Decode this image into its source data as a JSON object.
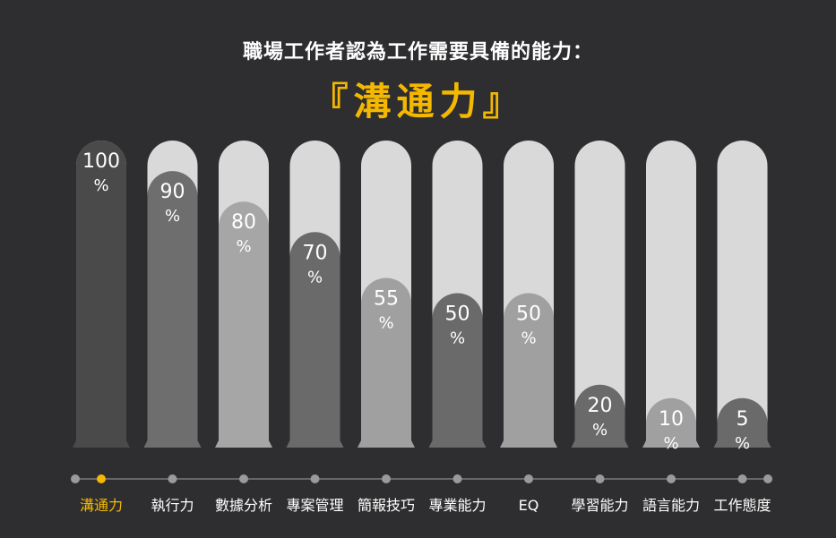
{
  "header": {
    "title": "職場工作者認為工作需要具備的能力：",
    "highlight": "『溝通力』"
  },
  "colors": {
    "background": "#2e2e30",
    "accent": "#f5b800",
    "track": "#d9d9d9",
    "timeline_line": "#7a7a7a",
    "timeline_dot": "#9a9a9a"
  },
  "chart_data": {
    "type": "bar",
    "categories": [
      "溝通力",
      "執行力",
      "數據分析",
      "專案管理",
      "簡報技巧",
      "專業能力",
      "EQ",
      "學習能力",
      "語言能力",
      "工作態度"
    ],
    "values": [
      100,
      90,
      80,
      70,
      55,
      50,
      50,
      20,
      10,
      5
    ],
    "value_unit": "%",
    "ylim": [
      0,
      100
    ],
    "highlight_category": "溝通力",
    "bar_colors": [
      "#4a4a4a",
      "#6e6e6e",
      "#a6a6a6",
      "#6a6a6a",
      "#a0a0a0",
      "#6a6a6a",
      "#a0a0a0",
      "#6a6a6a",
      "#a0a0a0",
      "#6a6a6a"
    ],
    "grid": false,
    "legend": "none"
  }
}
